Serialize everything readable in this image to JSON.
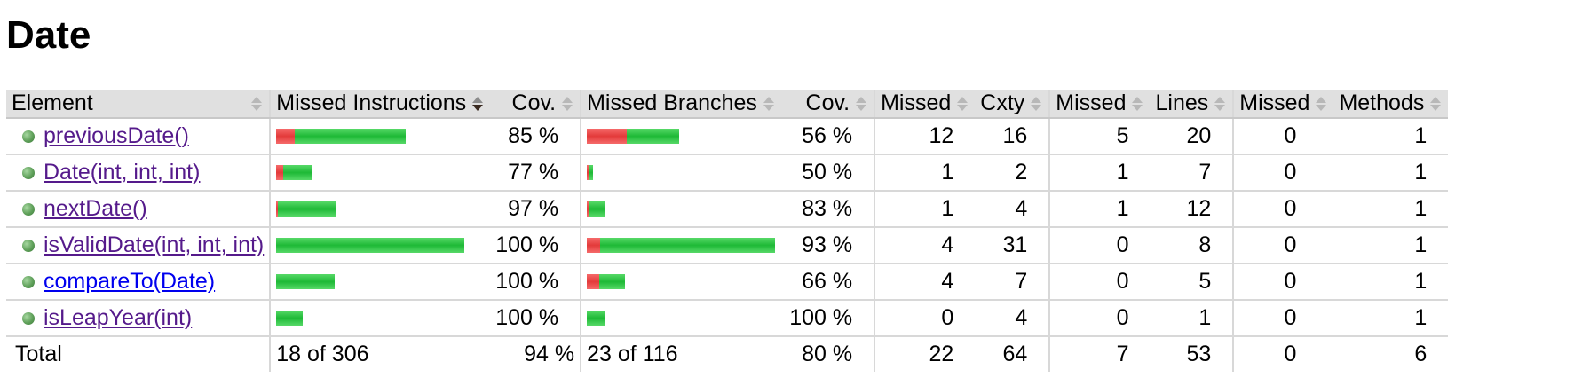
{
  "page_title": "Date",
  "headers": {
    "element": "Element",
    "missed_instructions": "Missed Instructions",
    "cov_instructions": "Cov.",
    "missed_branches": "Missed Branches",
    "cov_branches": "Cov.",
    "missed_cxty": "Missed",
    "cxty": "Cxty",
    "missed_lines": "Missed",
    "lines": "Lines",
    "missed_methods": "Missed",
    "methods": "Methods"
  },
  "rows": [
    {
      "name": "previousDate()",
      "visited": true,
      "instr_red": 0.1,
      "instr_green": 0.59,
      "instr_cov": "85 %",
      "br_red": 0.21,
      "br_green": 0.28,
      "br_cov": "56 %",
      "missed_cxty": "12",
      "cxty": "16",
      "missed_lines": "5",
      "lines": "20",
      "missed_methods": "0",
      "methods": "1"
    },
    {
      "name": "Date(int, int, int)",
      "visited": true,
      "instr_red": 0.04,
      "instr_green": 0.15,
      "instr_cov": "77 %",
      "br_red": 0.015,
      "br_green": 0.02,
      "br_cov": "50 %",
      "missed_cxty": "1",
      "cxty": "2",
      "missed_lines": "1",
      "lines": "7",
      "missed_methods": "0",
      "methods": "1"
    },
    {
      "name": "nextDate()",
      "visited": true,
      "instr_red": 0.01,
      "instr_green": 0.31,
      "instr_cov": "97 %",
      "br_red": 0.015,
      "br_green": 0.085,
      "br_cov": "83 %",
      "missed_cxty": "1",
      "cxty": "4",
      "missed_lines": "1",
      "lines": "12",
      "missed_methods": "0",
      "methods": "1"
    },
    {
      "name": "isValidDate(int, int, int)",
      "visited": true,
      "instr_red": 0,
      "instr_green": 1.0,
      "instr_cov": "100 %",
      "br_red": 0.07,
      "br_green": 0.93,
      "br_cov": "93 %",
      "missed_cxty": "4",
      "cxty": "31",
      "missed_lines": "0",
      "lines": "8",
      "missed_methods": "0",
      "methods": "1"
    },
    {
      "name": "compareTo(Date)",
      "visited": false,
      "instr_red": 0,
      "instr_green": 0.31,
      "instr_cov": "100 %",
      "br_red": 0.065,
      "br_green": 0.135,
      "br_cov": "66 %",
      "missed_cxty": "4",
      "cxty": "7",
      "missed_lines": "0",
      "lines": "5",
      "missed_methods": "0",
      "methods": "1"
    },
    {
      "name": "isLeapYear(int)",
      "visited": true,
      "instr_red": 0,
      "instr_green": 0.14,
      "instr_cov": "100 %",
      "br_red": 0,
      "br_green": 0.1,
      "br_cov": "100 %",
      "missed_cxty": "0",
      "cxty": "4",
      "missed_lines": "0",
      "lines": "1",
      "missed_methods": "0",
      "methods": "1"
    }
  ],
  "total": {
    "label": "Total",
    "instr": "18 of 306",
    "instr_cov": "94 %",
    "br": "23 of 116",
    "br_cov": "80 %",
    "missed_cxty": "22",
    "cxty": "64",
    "missed_lines": "7",
    "lines": "53",
    "missed_methods": "0",
    "methods": "6"
  },
  "colors": {
    "covered": "#1eb936",
    "missed": "#e33a3a",
    "header_bg": "#e0e0e0",
    "link_visited": "#551a8b",
    "link": "#0000ee"
  }
}
